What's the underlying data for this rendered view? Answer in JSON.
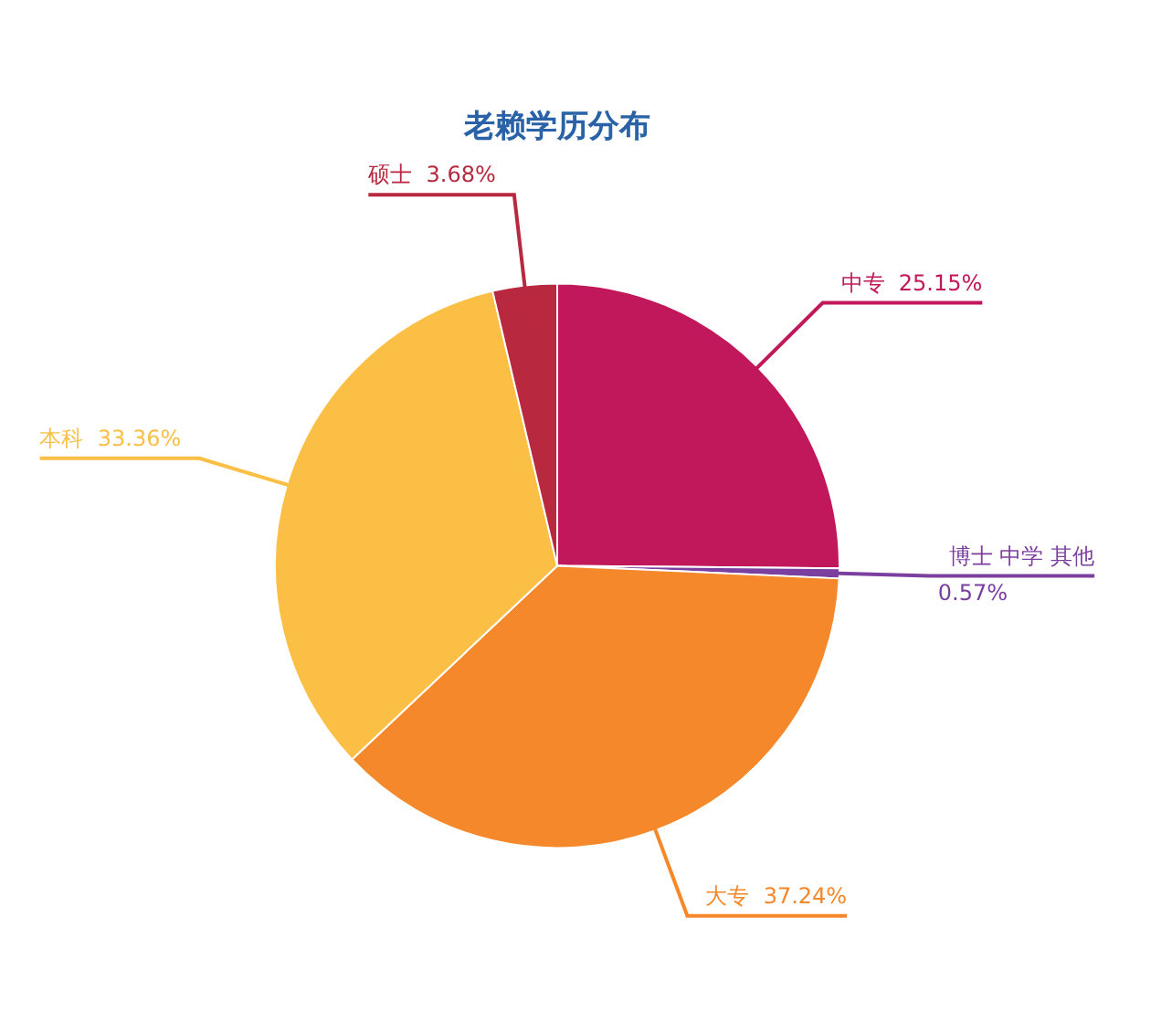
{
  "chart_data": {
    "type": "pie",
    "title": "老赖学历分布",
    "categories": [
      "中专",
      "博士 中学 其他",
      "大专",
      "本科",
      "硕士"
    ],
    "values": [
      25.15,
      0.57,
      37.24,
      33.36,
      3.68
    ],
    "value_labels": [
      "25.15%",
      "0.57%",
      "37.24%",
      "33.36%",
      "3.68%"
    ],
    "colors": [
      "#c0185a",
      "#7b3fa0",
      "#f5882a",
      "#fbbf45",
      "#b8283e"
    ],
    "legend": false
  }
}
